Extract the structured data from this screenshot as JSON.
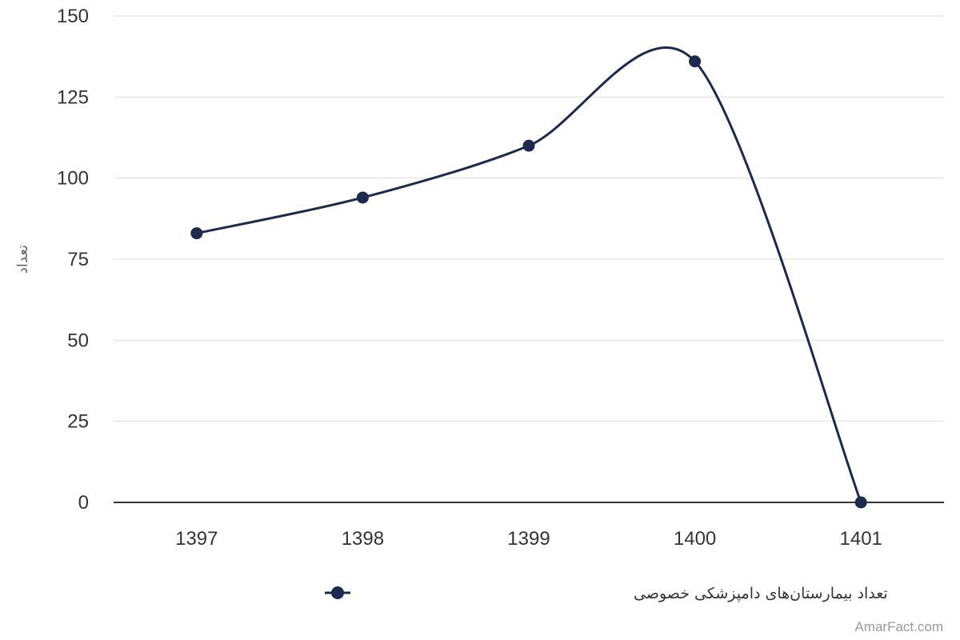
{
  "chart_data": {
    "type": "line",
    "title": "",
    "xlabel": "",
    "ylabel": "تعداد",
    "categories": [
      "1397",
      "1398",
      "1399",
      "1400",
      "1401"
    ],
    "series": [
      {
        "name": "تعداد بیمارستان‌های دامپزشکی خصوصی",
        "values": [
          83,
          94,
          110,
          136,
          0
        ],
        "color": "#1b2a4e"
      }
    ],
    "ylim": [
      0,
      150
    ],
    "yticks": [
      "0",
      "25",
      "50",
      "75",
      "100",
      "125",
      "150"
    ],
    "smooth": true,
    "grid": true,
    "legend_position": "bottom-center"
  },
  "credit": "AmarFact.com"
}
